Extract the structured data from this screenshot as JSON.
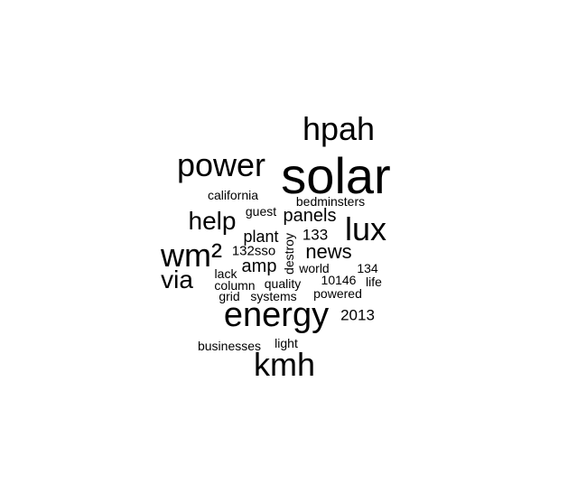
{
  "cloud": {
    "words": [
      {
        "text": "solar"
      },
      {
        "text": "hpah"
      },
      {
        "text": "power"
      },
      {
        "text": "energy"
      },
      {
        "text": "kmh"
      },
      {
        "text": "lux"
      },
      {
        "text": "wm²"
      },
      {
        "text": "help"
      },
      {
        "text": "via"
      },
      {
        "text": "news"
      },
      {
        "text": "panels"
      },
      {
        "text": "amp"
      },
      {
        "text": "plant"
      },
      {
        "text": "133"
      },
      {
        "text": "2013"
      },
      {
        "text": "california"
      },
      {
        "text": "bedminsters"
      },
      {
        "text": "guest"
      },
      {
        "text": "132sso"
      },
      {
        "text": "destroy"
      },
      {
        "text": "world"
      },
      {
        "text": "134"
      },
      {
        "text": "lack"
      },
      {
        "text": "10146"
      },
      {
        "text": "column"
      },
      {
        "text": "quality"
      },
      {
        "text": "life"
      },
      {
        "text": "grid"
      },
      {
        "text": "systems"
      },
      {
        "text": "powered"
      },
      {
        "text": "businesses"
      },
      {
        "text": "light"
      }
    ]
  }
}
